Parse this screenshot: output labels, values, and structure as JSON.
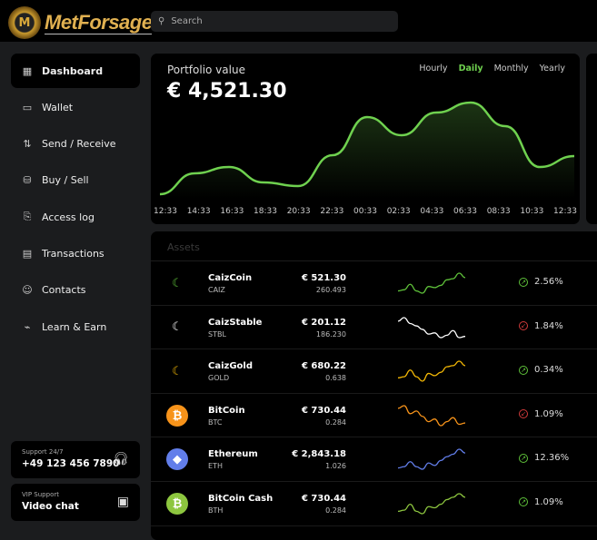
{
  "brand": {
    "name": "MetForsage",
    "mark": "M"
  },
  "search": {
    "placeholder": "Search"
  },
  "sidebar": {
    "items": [
      {
        "label": "Dashboard",
        "icon": "dashboard-icon",
        "glyph": "▦",
        "active": true
      },
      {
        "label": "Wallet",
        "icon": "wallet-icon",
        "glyph": "▭"
      },
      {
        "label": "Send / Receive",
        "icon": "transfer-icon",
        "glyph": "⇅"
      },
      {
        "label": "Buy / Sell",
        "icon": "coins-icon",
        "glyph": "⛁"
      },
      {
        "label": "Access log",
        "icon": "log-icon",
        "glyph": "⎘"
      },
      {
        "label": "Transactions",
        "icon": "clipboard-icon",
        "glyph": "▤"
      },
      {
        "label": "Contacts",
        "icon": "contacts-icon",
        "glyph": "☺"
      },
      {
        "label": "Learn & Earn",
        "icon": "chart-icon",
        "glyph": "⌁"
      }
    ],
    "support": {
      "label": "Support 24/7",
      "value": "+49 123 456 7890"
    },
    "vip": {
      "label": "VIP Support",
      "value": "Video chat"
    }
  },
  "portfolio": {
    "label": "Portfolio value",
    "value": "€ 4,521.30",
    "periods": [
      "Hourly",
      "Daily",
      "Monthly",
      "Yearly"
    ],
    "active_period": "Daily"
  },
  "chart_data": {
    "type": "line",
    "x": [
      "12:33",
      "14:33",
      "16:33",
      "18:33",
      "20:33",
      "22:33",
      "00:33",
      "02:33",
      "04:33",
      "06:33",
      "08:33",
      "10:33",
      "12:33"
    ],
    "values": [
      5,
      28,
      35,
      18,
      14,
      48,
      90,
      70,
      95,
      106,
      80,
      35,
      47
    ],
    "color": "#6fd14f",
    "ylim": [
      0,
      115
    ]
  },
  "assets": {
    "title": "Assets",
    "rows": [
      {
        "name": "CaizCoin",
        "symbol": "CAIZ",
        "value": "€ 521.30",
        "amount": "260.493",
        "change": "2.56%",
        "up": true,
        "color": "#5fc23a",
        "spark": [
          2,
          3,
          8,
          2,
          0,
          6,
          5,
          7,
          12,
          13,
          18,
          14
        ]
      },
      {
        "name": "CaizStable",
        "symbol": "STBL",
        "value": "€ 201.12",
        "amount": "186.230",
        "change": "1.84%",
        "up": false,
        "color": "#ffffff",
        "spark": [
          17,
          20,
          15,
          13,
          10,
          6,
          7,
          3,
          5,
          9,
          3,
          4
        ]
      },
      {
        "name": "CaizGold",
        "symbol": "GOLD",
        "value": "€ 680.22",
        "amount": "0.638",
        "change": "0.34%",
        "up": true,
        "color": "#f2b705",
        "spark": [
          3,
          4,
          10,
          4,
          0,
          7,
          5,
          8,
          13,
          14,
          18,
          14
        ]
      },
      {
        "name": "BitCoin",
        "symbol": "BTC",
        "value": "€ 730.44",
        "amount": "0.284",
        "change": "1.09%",
        "up": false,
        "color": "#f7931a",
        "spark": [
          16,
          18,
          12,
          14,
          10,
          6,
          8,
          3,
          6,
          9,
          4,
          5
        ]
      },
      {
        "name": "Ethereum",
        "symbol": "ETH",
        "value": "€ 2,843.18",
        "amount": "1.026",
        "change": "12.36%",
        "up": true,
        "color": "#627eea",
        "spark": [
          2,
          3,
          7,
          3,
          1,
          6,
          4,
          8,
          11,
          13,
          17,
          14
        ]
      },
      {
        "name": "BitCoin Cash",
        "symbol": "BTH",
        "value": "€ 730.44",
        "amount": "0.284",
        "change": "1.09%",
        "up": true,
        "color": "#8dc63f",
        "spark": [
          3,
          4,
          9,
          3,
          1,
          7,
          6,
          9,
          13,
          15,
          18,
          15
        ]
      }
    ]
  },
  "colors": {
    "up": "#5fc23a",
    "down": "#d23b3b",
    "accent": "#6fd14f"
  }
}
